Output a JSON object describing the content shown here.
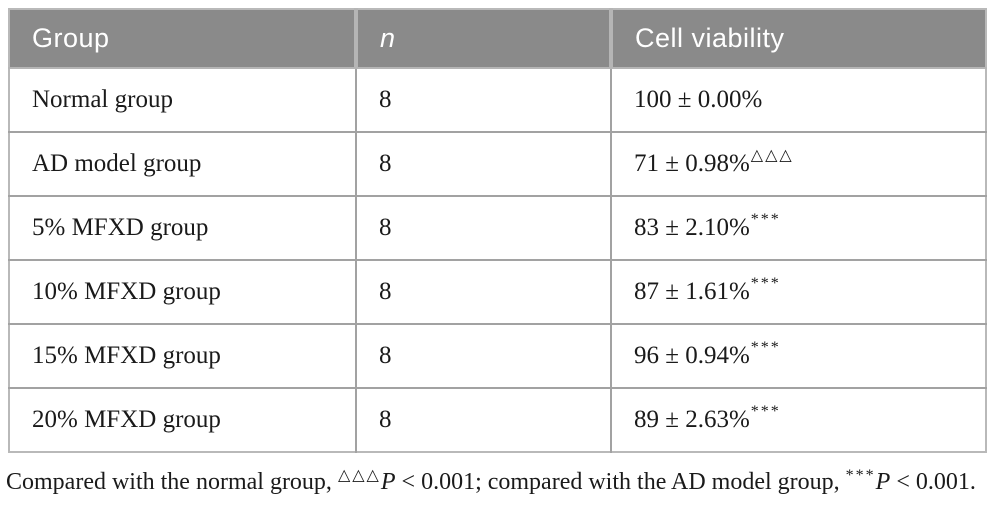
{
  "table": {
    "headers": {
      "group": "Group",
      "n": "n",
      "viability": "Cell viability"
    },
    "rows": [
      {
        "group": "Normal group",
        "n": "8",
        "viability": "100 ± 0.00%",
        "sup": ""
      },
      {
        "group": "AD model group",
        "n": "8",
        "viability": "71 ± 0.98%",
        "sup": "△△△"
      },
      {
        "group": "5% MFXD group",
        "n": "8",
        "viability": "83 ± 2.10%",
        "sup": "***"
      },
      {
        "group": "10% MFXD group",
        "n": "8",
        "viability": "87 ± 1.61%",
        "sup": "***"
      },
      {
        "group": "15% MFXD group",
        "n": "8",
        "viability": "96 ± 0.94%",
        "sup": "***"
      },
      {
        "group": "20% MFXD group",
        "n": "8",
        "viability": "89 ± 2.63%",
        "sup": "***"
      }
    ]
  },
  "footnote": {
    "part1": "Compared with the normal group, ",
    "sup1": "△△△",
    "p1": "P",
    "part2": " < 0.001; compared with the AD model group, ",
    "sup2": "***",
    "p2": "P",
    "part3": " < 0.001."
  },
  "colors": {
    "header_bg": "#8a8a8a",
    "header_text": "#ffffff",
    "border": "#a2a2a2",
    "body_text": "#1a1a1a"
  }
}
